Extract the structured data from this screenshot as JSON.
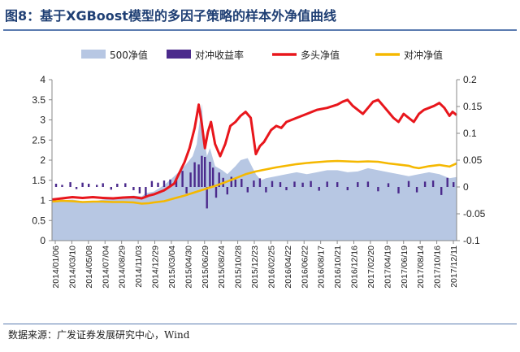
{
  "header": {
    "title": "图8：基于XGBoost模型的多因子策略的样本外净值曲线"
  },
  "footer": {
    "source": "数据来源：广发证券发展研究中心，Wind"
  },
  "chart_data": {
    "type": "line",
    "title": "图8：基于XGBoost模型的多因子策略的样本外净值曲线",
    "legend_position": "top",
    "y_left": {
      "min": 0,
      "max": 4,
      "ticks": [
        "0",
        "0.5",
        "1",
        "1.5",
        "2",
        "2.5",
        "3",
        "3.5",
        "4"
      ]
    },
    "y_right": {
      "min": -0.1,
      "max": 0.2,
      "ticks": [
        "-0.1",
        "-0.05",
        "0",
        "0.05",
        "0.1",
        "0.15",
        "0.2"
      ]
    },
    "x_range": [
      2014.0,
      2017.97
    ],
    "x_labels": [
      "2014/01/06",
      "2014/03/10",
      "2014/05/08",
      "2014/07/04",
      "2014/08/29",
      "2014/11/03",
      "2014/12/29",
      "2015/03/04",
      "2015/04/30",
      "2015/06/29",
      "2015/08/24",
      "2015/10/28",
      "2015/12/23",
      "2016/02/25",
      "2016/04/22",
      "2016/06/22",
      "2016/08/17",
      "2016/10/21",
      "2016/12/16",
      "2017/02/20",
      "2017/04/19",
      "2017/06/19",
      "2017/08/14",
      "2017/10/16",
      "2017/12/11"
    ],
    "series": [
      {
        "name": "500净值",
        "type": "area",
        "axis": "left",
        "color": "#b7c7e3",
        "points": [
          [
            2014.0,
            0.98
          ],
          [
            2014.1,
            1.0
          ],
          [
            2014.2,
            1.02
          ],
          [
            2014.3,
            0.98
          ],
          [
            2014.4,
            0.97
          ],
          [
            2014.5,
            1.02
          ],
          [
            2014.6,
            1.05
          ],
          [
            2014.7,
            1.1
          ],
          [
            2014.8,
            1.12
          ],
          [
            2014.88,
            1.1
          ],
          [
            2014.92,
            1.18
          ],
          [
            2015.0,
            1.22
          ],
          [
            2015.1,
            1.38
          ],
          [
            2015.2,
            1.6
          ],
          [
            2015.3,
            1.85
          ],
          [
            2015.38,
            2.1
          ],
          [
            2015.42,
            2.4
          ],
          [
            2015.45,
            3.0
          ],
          [
            2015.47,
            3.4
          ],
          [
            2015.49,
            2.6
          ],
          [
            2015.52,
            2.1
          ],
          [
            2015.55,
            2.3
          ],
          [
            2015.6,
            1.85
          ],
          [
            2015.67,
            1.75
          ],
          [
            2015.72,
            1.65
          ],
          [
            2015.8,
            1.85
          ],
          [
            2015.85,
            2.0
          ],
          [
            2015.92,
            2.05
          ],
          [
            2016.0,
            1.65
          ],
          [
            2016.05,
            1.5
          ],
          [
            2016.1,
            1.55
          ],
          [
            2016.2,
            1.6
          ],
          [
            2016.3,
            1.65
          ],
          [
            2016.4,
            1.7
          ],
          [
            2016.5,
            1.65
          ],
          [
            2016.6,
            1.7
          ],
          [
            2016.7,
            1.75
          ],
          [
            2016.8,
            1.75
          ],
          [
            2016.9,
            1.7
          ],
          [
            2017.0,
            1.72
          ],
          [
            2017.1,
            1.8
          ],
          [
            2017.2,
            1.75
          ],
          [
            2017.3,
            1.7
          ],
          [
            2017.4,
            1.65
          ],
          [
            2017.5,
            1.6
          ],
          [
            2017.6,
            1.65
          ],
          [
            2017.7,
            1.7
          ],
          [
            2017.8,
            1.65
          ],
          [
            2017.9,
            1.55
          ],
          [
            2017.97,
            1.58
          ]
        ]
      },
      {
        "name": "对冲收益率",
        "type": "bar",
        "axis": "right",
        "color": "#4b2a8c",
        "points": [
          [
            2014.04,
            0.006
          ],
          [
            2014.1,
            0.004
          ],
          [
            2014.18,
            0.009
          ],
          [
            2014.24,
            -0.004
          ],
          [
            2014.3,
            0.008
          ],
          [
            2014.36,
            0.006
          ],
          [
            2014.44,
            0.004
          ],
          [
            2014.5,
            0.007
          ],
          [
            2014.58,
            -0.005
          ],
          [
            2014.64,
            0.006
          ],
          [
            2014.72,
            0.007
          ],
          [
            2014.8,
            -0.006
          ],
          [
            2014.86,
            -0.012
          ],
          [
            2014.92,
            -0.018
          ],
          [
            2014.98,
            0.011
          ],
          [
            2015.04,
            0.008
          ],
          [
            2015.1,
            0.012
          ],
          [
            2015.16,
            0.014
          ],
          [
            2015.22,
            0.016
          ],
          [
            2015.28,
            0.03
          ],
          [
            2015.32,
            -0.012
          ],
          [
            2015.36,
            0.027
          ],
          [
            2015.4,
            0.046
          ],
          [
            2015.44,
            0.042
          ],
          [
            2015.47,
            0.058
          ],
          [
            2015.5,
            0.056
          ],
          [
            2015.52,
            -0.04
          ],
          [
            2015.55,
            0.047
          ],
          [
            2015.58,
            0.036
          ],
          [
            2015.61,
            -0.02
          ],
          [
            2015.64,
            0.027
          ],
          [
            2015.68,
            0.017
          ],
          [
            2015.72,
            -0.014
          ],
          [
            2015.76,
            0.019
          ],
          [
            2015.8,
            0.014
          ],
          [
            2015.86,
            0.015
          ],
          [
            2015.92,
            -0.01
          ],
          [
            2015.98,
            0.012
          ],
          [
            2016.04,
            0.016
          ],
          [
            2016.1,
            -0.01
          ],
          [
            2016.16,
            0.011
          ],
          [
            2016.24,
            0.009
          ],
          [
            2016.3,
            -0.006
          ],
          [
            2016.38,
            0.01
          ],
          [
            2016.46,
            0.008
          ],
          [
            2016.54,
            0.011
          ],
          [
            2016.62,
            -0.007
          ],
          [
            2016.7,
            0.01
          ],
          [
            2016.8,
            0.009
          ],
          [
            2016.9,
            -0.006
          ],
          [
            2017.0,
            0.009
          ],
          [
            2017.1,
            0.01
          ],
          [
            2017.2,
            -0.008
          ],
          [
            2017.3,
            0.007
          ],
          [
            2017.4,
            -0.012
          ],
          [
            2017.5,
            0.011
          ],
          [
            2017.58,
            -0.01
          ],
          [
            2017.66,
            0.01
          ],
          [
            2017.74,
            0.012
          ],
          [
            2017.82,
            -0.015
          ],
          [
            2017.88,
            0.017
          ],
          [
            2017.94,
            0.009
          ]
        ]
      },
      {
        "name": "多头净值",
        "type": "line",
        "axis": "left",
        "color": "#e8161c",
        "points": [
          [
            2014.0,
            1.02
          ],
          [
            2014.1,
            1.05
          ],
          [
            2014.2,
            1.08
          ],
          [
            2014.3,
            1.06
          ],
          [
            2014.4,
            1.08
          ],
          [
            2014.5,
            1.06
          ],
          [
            2014.6,
            1.05
          ],
          [
            2014.7,
            1.07
          ],
          [
            2014.8,
            1.08
          ],
          [
            2014.88,
            1.05
          ],
          [
            2014.95,
            1.12
          ],
          [
            2015.0,
            1.15
          ],
          [
            2015.1,
            1.25
          ],
          [
            2015.2,
            1.42
          ],
          [
            2015.3,
            1.95
          ],
          [
            2015.35,
            2.3
          ],
          [
            2015.4,
            2.8
          ],
          [
            2015.44,
            3.38
          ],
          [
            2015.47,
            2.9
          ],
          [
            2015.5,
            2.3
          ],
          [
            2015.53,
            2.7
          ],
          [
            2015.56,
            2.95
          ],
          [
            2015.6,
            2.4
          ],
          [
            2015.65,
            2.1
          ],
          [
            2015.7,
            2.4
          ],
          [
            2015.75,
            2.85
          ],
          [
            2015.8,
            2.95
          ],
          [
            2015.85,
            3.1
          ],
          [
            2015.9,
            3.2
          ],
          [
            2015.95,
            3.05
          ],
          [
            2016.0,
            2.15
          ],
          [
            2016.04,
            2.35
          ],
          [
            2016.08,
            2.45
          ],
          [
            2016.15,
            2.75
          ],
          [
            2016.2,
            2.85
          ],
          [
            2016.25,
            2.8
          ],
          [
            2016.3,
            2.95
          ],
          [
            2016.4,
            3.05
          ],
          [
            2016.5,
            3.15
          ],
          [
            2016.6,
            3.25
          ],
          [
            2016.7,
            3.3
          ],
          [
            2016.8,
            3.38
          ],
          [
            2016.85,
            3.45
          ],
          [
            2016.9,
            3.5
          ],
          [
            2016.95,
            3.35
          ],
          [
            2017.0,
            3.25
          ],
          [
            2017.05,
            3.15
          ],
          [
            2017.1,
            3.3
          ],
          [
            2017.15,
            3.45
          ],
          [
            2017.2,
            3.5
          ],
          [
            2017.25,
            3.35
          ],
          [
            2017.3,
            3.2
          ],
          [
            2017.35,
            3.05
          ],
          [
            2017.4,
            2.95
          ],
          [
            2017.45,
            3.15
          ],
          [
            2017.5,
            3.05
          ],
          [
            2017.55,
            2.95
          ],
          [
            2017.6,
            3.15
          ],
          [
            2017.65,
            3.25
          ],
          [
            2017.7,
            3.3
          ],
          [
            2017.75,
            3.35
          ],
          [
            2017.8,
            3.42
          ],
          [
            2017.85,
            3.3
          ],
          [
            2017.9,
            3.1
          ],
          [
            2017.93,
            3.2
          ],
          [
            2017.97,
            3.12
          ]
        ]
      },
      {
        "name": "对冲净值",
        "type": "line",
        "axis": "left",
        "color": "#f5b800",
        "points": [
          [
            2014.0,
            0.97
          ],
          [
            2014.1,
            0.99
          ],
          [
            2014.2,
            0.98
          ],
          [
            2014.3,
            0.96
          ],
          [
            2014.4,
            0.97
          ],
          [
            2014.5,
            0.97
          ],
          [
            2014.6,
            0.96
          ],
          [
            2014.7,
            0.96
          ],
          [
            2014.8,
            0.95
          ],
          [
            2014.88,
            0.92
          ],
          [
            2014.95,
            0.93
          ],
          [
            2015.0,
            0.95
          ],
          [
            2015.1,
            0.98
          ],
          [
            2015.2,
            1.05
          ],
          [
            2015.3,
            1.12
          ],
          [
            2015.4,
            1.2
          ],
          [
            2015.5,
            1.28
          ],
          [
            2015.6,
            1.36
          ],
          [
            2015.7,
            1.45
          ],
          [
            2015.8,
            1.55
          ],
          [
            2015.9,
            1.65
          ],
          [
            2016.0,
            1.72
          ],
          [
            2016.1,
            1.77
          ],
          [
            2016.2,
            1.82
          ],
          [
            2016.3,
            1.86
          ],
          [
            2016.4,
            1.9
          ],
          [
            2016.5,
            1.93
          ],
          [
            2016.6,
            1.95
          ],
          [
            2016.7,
            1.97
          ],
          [
            2016.8,
            1.98
          ],
          [
            2016.9,
            1.97
          ],
          [
            2017.0,
            1.96
          ],
          [
            2017.1,
            1.97
          ],
          [
            2017.2,
            1.96
          ],
          [
            2017.3,
            1.92
          ],
          [
            2017.4,
            1.89
          ],
          [
            2017.5,
            1.86
          ],
          [
            2017.55,
            1.82
          ],
          [
            2017.6,
            1.8
          ],
          [
            2017.7,
            1.85
          ],
          [
            2017.8,
            1.88
          ],
          [
            2017.85,
            1.86
          ],
          [
            2017.9,
            1.84
          ],
          [
            2017.97,
            1.92
          ]
        ]
      }
    ]
  }
}
